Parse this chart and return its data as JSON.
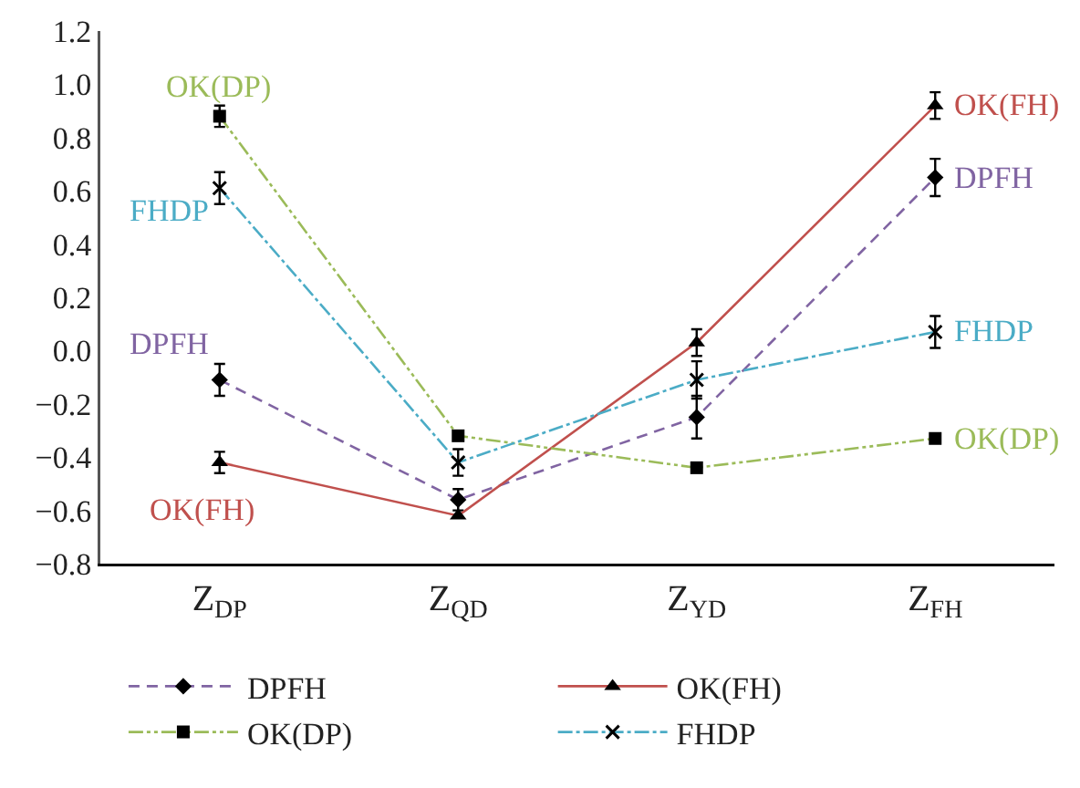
{
  "chart_data": {
    "type": "line",
    "categories": [
      "Z$_{DP}$",
      "Z$_{QD}$",
      "Z$_{YD}$",
      "Z$_{FH}$"
    ],
    "series": [
      {
        "name": "DPFH",
        "color": "#8064a2",
        "marker": "diamond",
        "line_style": "dashed",
        "values": [
          -0.11,
          -0.56,
          -0.25,
          0.65
        ],
        "errors": [
          0.06,
          0.04,
          0.08,
          0.07
        ]
      },
      {
        "name": "OK(FH)",
        "color": "#c0504d",
        "marker": "triangle",
        "line_style": "solid",
        "values": [
          -0.42,
          -0.62,
          0.03,
          0.92
        ],
        "errors": [
          0.04,
          null,
          0.05,
          0.05
        ]
      },
      {
        "name": "OK(DP)",
        "color": "#9bbb59",
        "marker": "square",
        "line_style": "dashdotdot",
        "values": [
          0.88,
          -0.32,
          -0.44,
          -0.33
        ],
        "errors": [
          0.04,
          null,
          null,
          null
        ]
      },
      {
        "name": "FHDP",
        "color": "#4bacc6",
        "marker": "cross",
        "line_style": "dashdot",
        "values": [
          0.61,
          -0.42,
          -0.11,
          0.07
        ],
        "errors": [
          0.06,
          0.05,
          0.07,
          0.06
        ]
      }
    ],
    "annotations": [
      {
        "text": "OK(DP)",
        "x": "Z$_{DP}$",
        "y": 0.88
      },
      {
        "text": "FHDP",
        "x": "Z$_{DP}$",
        "y": 0.61
      },
      {
        "text": "DPFH",
        "x": "Z$_{DP}$",
        "y": -0.11
      },
      {
        "text": "OK(FH)",
        "x": "Z$_{DP}$",
        "y": -0.42
      },
      {
        "text": "OK(FH)",
        "x": "Z$_{FH}$",
        "y": 0.92
      },
      {
        "text": "DPFH",
        "x": "Z$_{FH}$",
        "y": 0.65
      },
      {
        "text": "FHDP",
        "x": "Z$_{FH}$",
        "y": 0.07
      },
      {
        "text": "OK(DP)",
        "x": "Z$_{FH}$",
        "y": -0.33
      }
    ],
    "ylim": [
      -0.8,
      1.2
    ],
    "yticks": [
      {
        "value": -0.8,
        "label": "−0.8"
      },
      {
        "value": -0.6,
        "label": "−0.6"
      },
      {
        "value": -0.4,
        "label": "−0.4"
      },
      {
        "value": -0.2,
        "label": "−0.2"
      },
      {
        "value": 0,
        "label": "0.0"
      },
      {
        "value": 0.2,
        "label": "0.2"
      },
      {
        "value": 0.4,
        "label": "0.4"
      },
      {
        "value": 0.6,
        "label": "0.6"
      },
      {
        "value": 0.8,
        "label": "0.8"
      },
      {
        "value": 1,
        "label": "1.0"
      },
      {
        "value": 1.2,
        "label": "1.2"
      }
    ],
    "grid": false,
    "legend": "bottom"
  }
}
